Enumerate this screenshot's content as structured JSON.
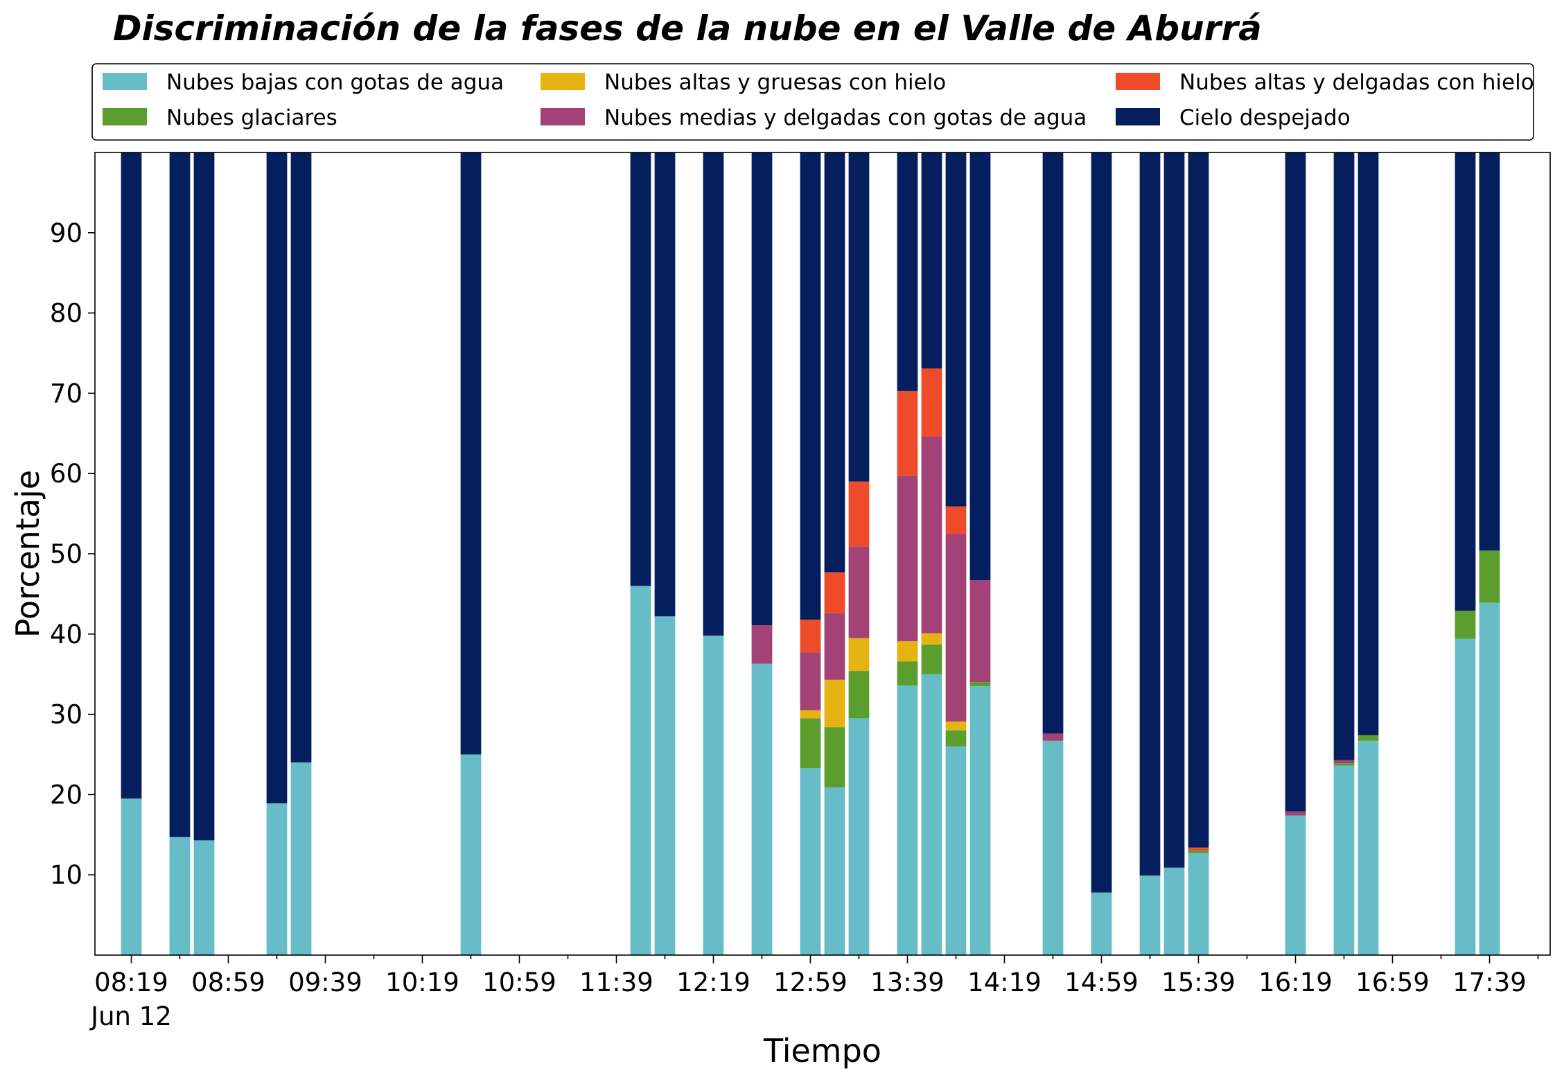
{
  "chart_data": {
    "type": "bar",
    "stacked": true,
    "title": "Discriminación de la fases de la nube en el Valle de Aburrá",
    "xlabel": "Tiempo",
    "ylabel": "Porcentaje",
    "ylim": [
      0,
      100
    ],
    "yticks": [
      10,
      20,
      30,
      40,
      50,
      60,
      70,
      80,
      90
    ],
    "xticks": [
      "08:19",
      "08:59",
      "09:39",
      "10:19",
      "10:59",
      "11:39",
      "12:19",
      "12:59",
      "13:39",
      "14:19",
      "14:59",
      "15:39",
      "16:19",
      "16:59",
      "17:39"
    ],
    "xtick_sublabel": "Jun 12",
    "x_range_minutes": [
      "08:04",
      "18:04"
    ],
    "bar_width_minutes": 8.5,
    "grid": false,
    "legend_placement": "top (above plot, 3 columns)",
    "times": [
      "08:19",
      "08:39",
      "08:49",
      "09:19",
      "09:29",
      "10:39",
      "11:49",
      "11:59",
      "12:19",
      "12:39",
      "12:59",
      "13:09",
      "13:19",
      "13:39",
      "13:49",
      "13:59",
      "14:09",
      "14:39",
      "14:59",
      "15:19",
      "15:29",
      "15:39",
      "16:19",
      "16:39",
      "16:49",
      "17:29",
      "17:39"
    ],
    "series": [
      {
        "name": "Nubes bajas con gotas de agua",
        "color": "#66BDC8",
        "values": [
          19.5,
          14.7,
          14.3,
          18.9,
          24.0,
          25.0,
          46.0,
          42.2,
          39.8,
          36.3,
          23.3,
          20.9,
          29.5,
          33.6,
          35.0,
          26.0,
          33.5,
          26.7,
          7.8,
          9.9,
          10.9,
          12.7,
          17.4,
          23.6,
          26.7,
          39.4,
          43.9
        ]
      },
      {
        "name": "Nubes glaciares",
        "color": "#5B9E2E",
        "values": [
          0,
          0,
          0,
          0,
          0,
          0,
          0,
          0,
          0,
          0,
          6.2,
          7.5,
          5.9,
          3.0,
          3.7,
          2.0,
          0.5,
          0,
          0,
          0,
          0,
          0.3,
          0,
          0.3,
          0.7,
          3.5,
          6.5
        ]
      },
      {
        "name": "Nubes altas y gruesas con hielo",
        "color": "#E5B312",
        "values": [
          0,
          0,
          0,
          0,
          0,
          0,
          0,
          0,
          0,
          0,
          1.0,
          5.9,
          4.1,
          2.5,
          1.4,
          1.1,
          0,
          0,
          0,
          0,
          0,
          0,
          0,
          0,
          0,
          0,
          0
        ]
      },
      {
        "name": "Nubes medias y delgadas con gotas de agua",
        "color": "#A24277",
        "values": [
          0,
          0,
          0,
          0,
          0,
          0,
          0,
          0,
          0,
          4.8,
          7.2,
          8.3,
          11.4,
          20.6,
          24.5,
          23.4,
          12.7,
          0.9,
          0,
          0,
          0,
          0,
          0.5,
          0.4,
          0,
          0,
          0
        ]
      },
      {
        "name": "Nubes altas y delgadas con hielo",
        "color": "#EE4B2B",
        "values": [
          0,
          0,
          0,
          0,
          0,
          0,
          0,
          0,
          0,
          0,
          4.1,
          5.1,
          8.1,
          10.6,
          8.5,
          3.4,
          0,
          0,
          0,
          0,
          0,
          0.4,
          0,
          0,
          0,
          0,
          0
        ]
      },
      {
        "name": "Cielo despejado",
        "color": "#041E5E",
        "values": [
          80.5,
          85.3,
          85.7,
          81.1,
          76.0,
          75.0,
          54.0,
          57.8,
          60.2,
          58.9,
          58.2,
          52.3,
          41.0,
          29.7,
          26.9,
          44.1,
          53.3,
          72.4,
          92.2,
          90.1,
          89.1,
          86.6,
          82.1,
          75.7,
          72.6,
          57.1,
          49.6
        ]
      }
    ]
  }
}
